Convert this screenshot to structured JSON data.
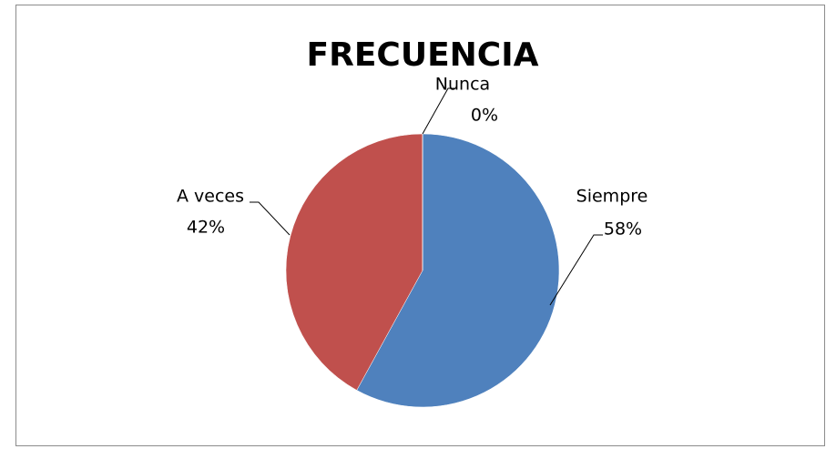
{
  "chart_data": {
    "type": "pie",
    "title": "FRECUENCIA",
    "categories": [
      "Siempre",
      "A veces",
      "Nunca"
    ],
    "values": [
      58,
      42,
      0
    ],
    "value_labels": [
      "58%",
      "42%",
      "0%"
    ],
    "colors": [
      "#4f81bd",
      "#c0504d",
      "#9bbb59"
    ]
  }
}
